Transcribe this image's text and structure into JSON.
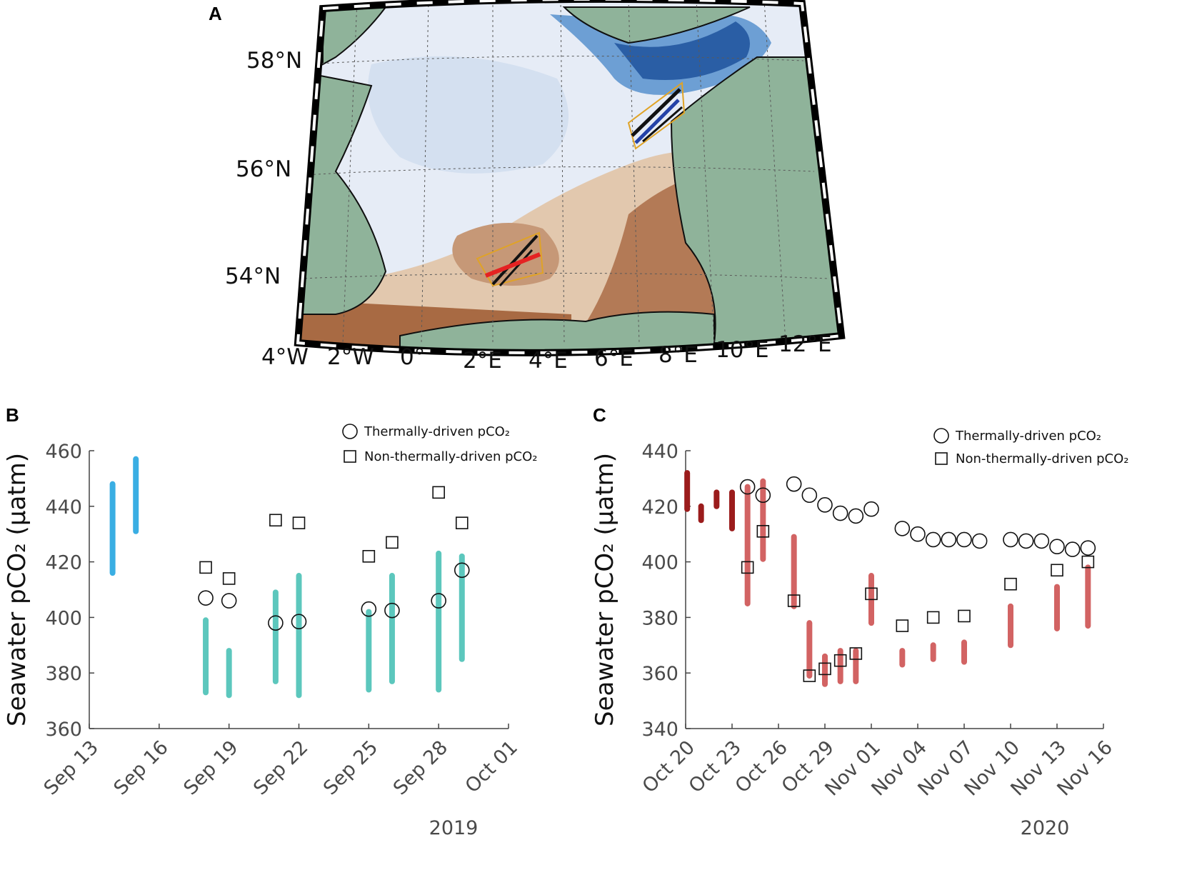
{
  "colors": {
    "land": "#8fb39a",
    "coast": "#0f0f0f",
    "shelf_light": "#e4eaf5",
    "deep_blue": "#2a5ea5",
    "shallow_brown": "#b37a56",
    "sand": "#e2c8ae",
    "sep_early": "#3aaee3",
    "sep_late": "#5cc7bd",
    "oct_dark": "#9b1c1c",
    "oct_light": "#d26363"
  },
  "panel_a": {
    "letter": "A",
    "lat_labels": [
      "58°N",
      "56°N",
      "54°N"
    ],
    "lon_labels": [
      "4°W",
      "2°W",
      "0°",
      "2°E",
      "4°E",
      "6°E",
      "8°E",
      "10°E",
      "12°E"
    ]
  },
  "chart_data": [
    {
      "panel": "B",
      "type": "scatter",
      "title": "",
      "ylabel": "Seawater pCO₂ (µatm)",
      "ylim": [
        360,
        460
      ],
      "yticks": [
        "360",
        "380",
        "400",
        "420",
        "440",
        "460"
      ],
      "xlim_days": [
        0,
        18
      ],
      "xticks": [
        "Sep 13",
        "Sep 16",
        "Sep 19",
        "Sep 22",
        "Sep 25",
        "Sep 28",
        "Oct 01"
      ],
      "year_label": "2019",
      "legend": {
        "thermal": "Thermally-driven pCO₂",
        "nonthermal": "Non-thermally-driven pCO₂"
      },
      "observed_ranges": [
        {
          "day": 1.0,
          "min": 416,
          "max": 448,
          "group": "early"
        },
        {
          "day": 2.0,
          "min": 431,
          "max": 457,
          "group": "early"
        },
        {
          "day": 5.0,
          "min": 373,
          "max": 399,
          "group": "late"
        },
        {
          "day": 6.0,
          "min": 372,
          "max": 388,
          "group": "late"
        },
        {
          "day": 8.0,
          "min": 377,
          "max": 409,
          "group": "late"
        },
        {
          "day": 9.0,
          "min": 372,
          "max": 415,
          "group": "late"
        },
        {
          "day": 12.0,
          "min": 374,
          "max": 402,
          "group": "late"
        },
        {
          "day": 13.0,
          "min": 377,
          "max": 415,
          "group": "late"
        },
        {
          "day": 15.0,
          "min": 374,
          "max": 423,
          "group": "late"
        },
        {
          "day": 16.0,
          "min": 385,
          "max": 422,
          "group": "late"
        }
      ],
      "thermal": [
        {
          "day": 5.0,
          "value": 407
        },
        {
          "day": 6.0,
          "value": 406
        },
        {
          "day": 8.0,
          "value": 398
        },
        {
          "day": 9.0,
          "value": 398.5
        },
        {
          "day": 12.0,
          "value": 403
        },
        {
          "day": 13.0,
          "value": 402.5
        },
        {
          "day": 15.0,
          "value": 406
        },
        {
          "day": 16.0,
          "value": 417
        }
      ],
      "nonthermal": [
        {
          "day": 5.0,
          "value": 418
        },
        {
          "day": 6.0,
          "value": 414
        },
        {
          "day": 8.0,
          "value": 435
        },
        {
          "day": 9.0,
          "value": 434
        },
        {
          "day": 12.0,
          "value": 422
        },
        {
          "day": 13.0,
          "value": 427
        },
        {
          "day": 15.0,
          "value": 445
        },
        {
          "day": 16.0,
          "value": 434
        }
      ]
    },
    {
      "panel": "C",
      "type": "scatter",
      "title": "",
      "ylabel": "Seawater pCO₂ (µatm)",
      "ylim": [
        340,
        440
      ],
      "yticks": [
        "340",
        "360",
        "380",
        "400",
        "420",
        "440"
      ],
      "xlim_days": [
        0,
        27
      ],
      "xticks": [
        "Oct 20",
        "Oct 23",
        "Oct 26",
        "Oct 29",
        "Nov 01",
        "Nov 04",
        "Nov 07",
        "Nov 10",
        "Nov 13",
        "Nov 16"
      ],
      "year_label": "2020",
      "legend": {
        "thermal": "Thermally-driven pCO₂",
        "nonthermal": "Non-thermally-driven pCO₂"
      },
      "observed_ranges": [
        {
          "day": 0.1,
          "min": 419,
          "max": 432,
          "group": "early"
        },
        {
          "day": 1.0,
          "min": 415,
          "max": 420,
          "group": "early"
        },
        {
          "day": 2.0,
          "min": 420,
          "max": 425,
          "group": "early"
        },
        {
          "day": 3.0,
          "min": 412,
          "max": 425,
          "group": "early"
        },
        {
          "day": 4.0,
          "min": 385,
          "max": 427,
          "group": "late"
        },
        {
          "day": 5.0,
          "min": 401,
          "max": 429,
          "group": "late"
        },
        {
          "day": 7.0,
          "min": 384,
          "max": 409,
          "group": "late"
        },
        {
          "day": 8.0,
          "min": 359,
          "max": 378,
          "group": "late"
        },
        {
          "day": 9.0,
          "min": 356,
          "max": 366,
          "group": "late"
        },
        {
          "day": 10.0,
          "min": 357,
          "max": 368,
          "group": "late"
        },
        {
          "day": 11.0,
          "min": 357,
          "max": 368,
          "group": "late"
        },
        {
          "day": 12.0,
          "min": 378,
          "max": 395,
          "group": "late"
        },
        {
          "day": 14.0,
          "min": 363,
          "max": 368,
          "group": "late"
        },
        {
          "day": 16.0,
          "min": 365,
          "max": 370,
          "group": "late"
        },
        {
          "day": 18.0,
          "min": 364,
          "max": 371,
          "group": "late"
        },
        {
          "day": 21.0,
          "min": 370,
          "max": 384,
          "group": "late"
        },
        {
          "day": 24.0,
          "min": 376,
          "max": 391,
          "group": "late"
        },
        {
          "day": 26.0,
          "min": 377,
          "max": 398,
          "group": "late"
        }
      ],
      "thermal": [
        {
          "day": 4.0,
          "value": 427
        },
        {
          "day": 5.0,
          "value": 424
        },
        {
          "day": 7.0,
          "value": 428
        },
        {
          "day": 8.0,
          "value": 424
        },
        {
          "day": 9.0,
          "value": 420.5
        },
        {
          "day": 10.0,
          "value": 417.5
        },
        {
          "day": 11.0,
          "value": 416.5
        },
        {
          "day": 12.0,
          "value": 419
        },
        {
          "day": 14.0,
          "value": 412
        },
        {
          "day": 15.0,
          "value": 410
        },
        {
          "day": 16.0,
          "value": 408
        },
        {
          "day": 17.0,
          "value": 408
        },
        {
          "day": 18.0,
          "value": 408
        },
        {
          "day": 19.0,
          "value": 407.5
        },
        {
          "day": 21.0,
          "value": 408
        },
        {
          "day": 22.0,
          "value": 407.5
        },
        {
          "day": 23.0,
          "value": 407.5
        },
        {
          "day": 24.0,
          "value": 405.5
        },
        {
          "day": 25.0,
          "value": 404.5
        },
        {
          "day": 26.0,
          "value": 405
        }
      ],
      "nonthermal": [
        {
          "day": 4.0,
          "value": 398
        },
        {
          "day": 5.0,
          "value": 411
        },
        {
          "day": 7.0,
          "value": 386
        },
        {
          "day": 8.0,
          "value": 359
        },
        {
          "day": 9.0,
          "value": 361.5
        },
        {
          "day": 10.0,
          "value": 364.5
        },
        {
          "day": 11.0,
          "value": 367
        },
        {
          "day": 12.0,
          "value": 388.5
        },
        {
          "day": 14.0,
          "value": 377
        },
        {
          "day": 16.0,
          "value": 380
        },
        {
          "day": 18.0,
          "value": 380.5
        },
        {
          "day": 21.0,
          "value": 392
        },
        {
          "day": 24.0,
          "value": 397
        },
        {
          "day": 26.0,
          "value": 400
        }
      ]
    }
  ]
}
